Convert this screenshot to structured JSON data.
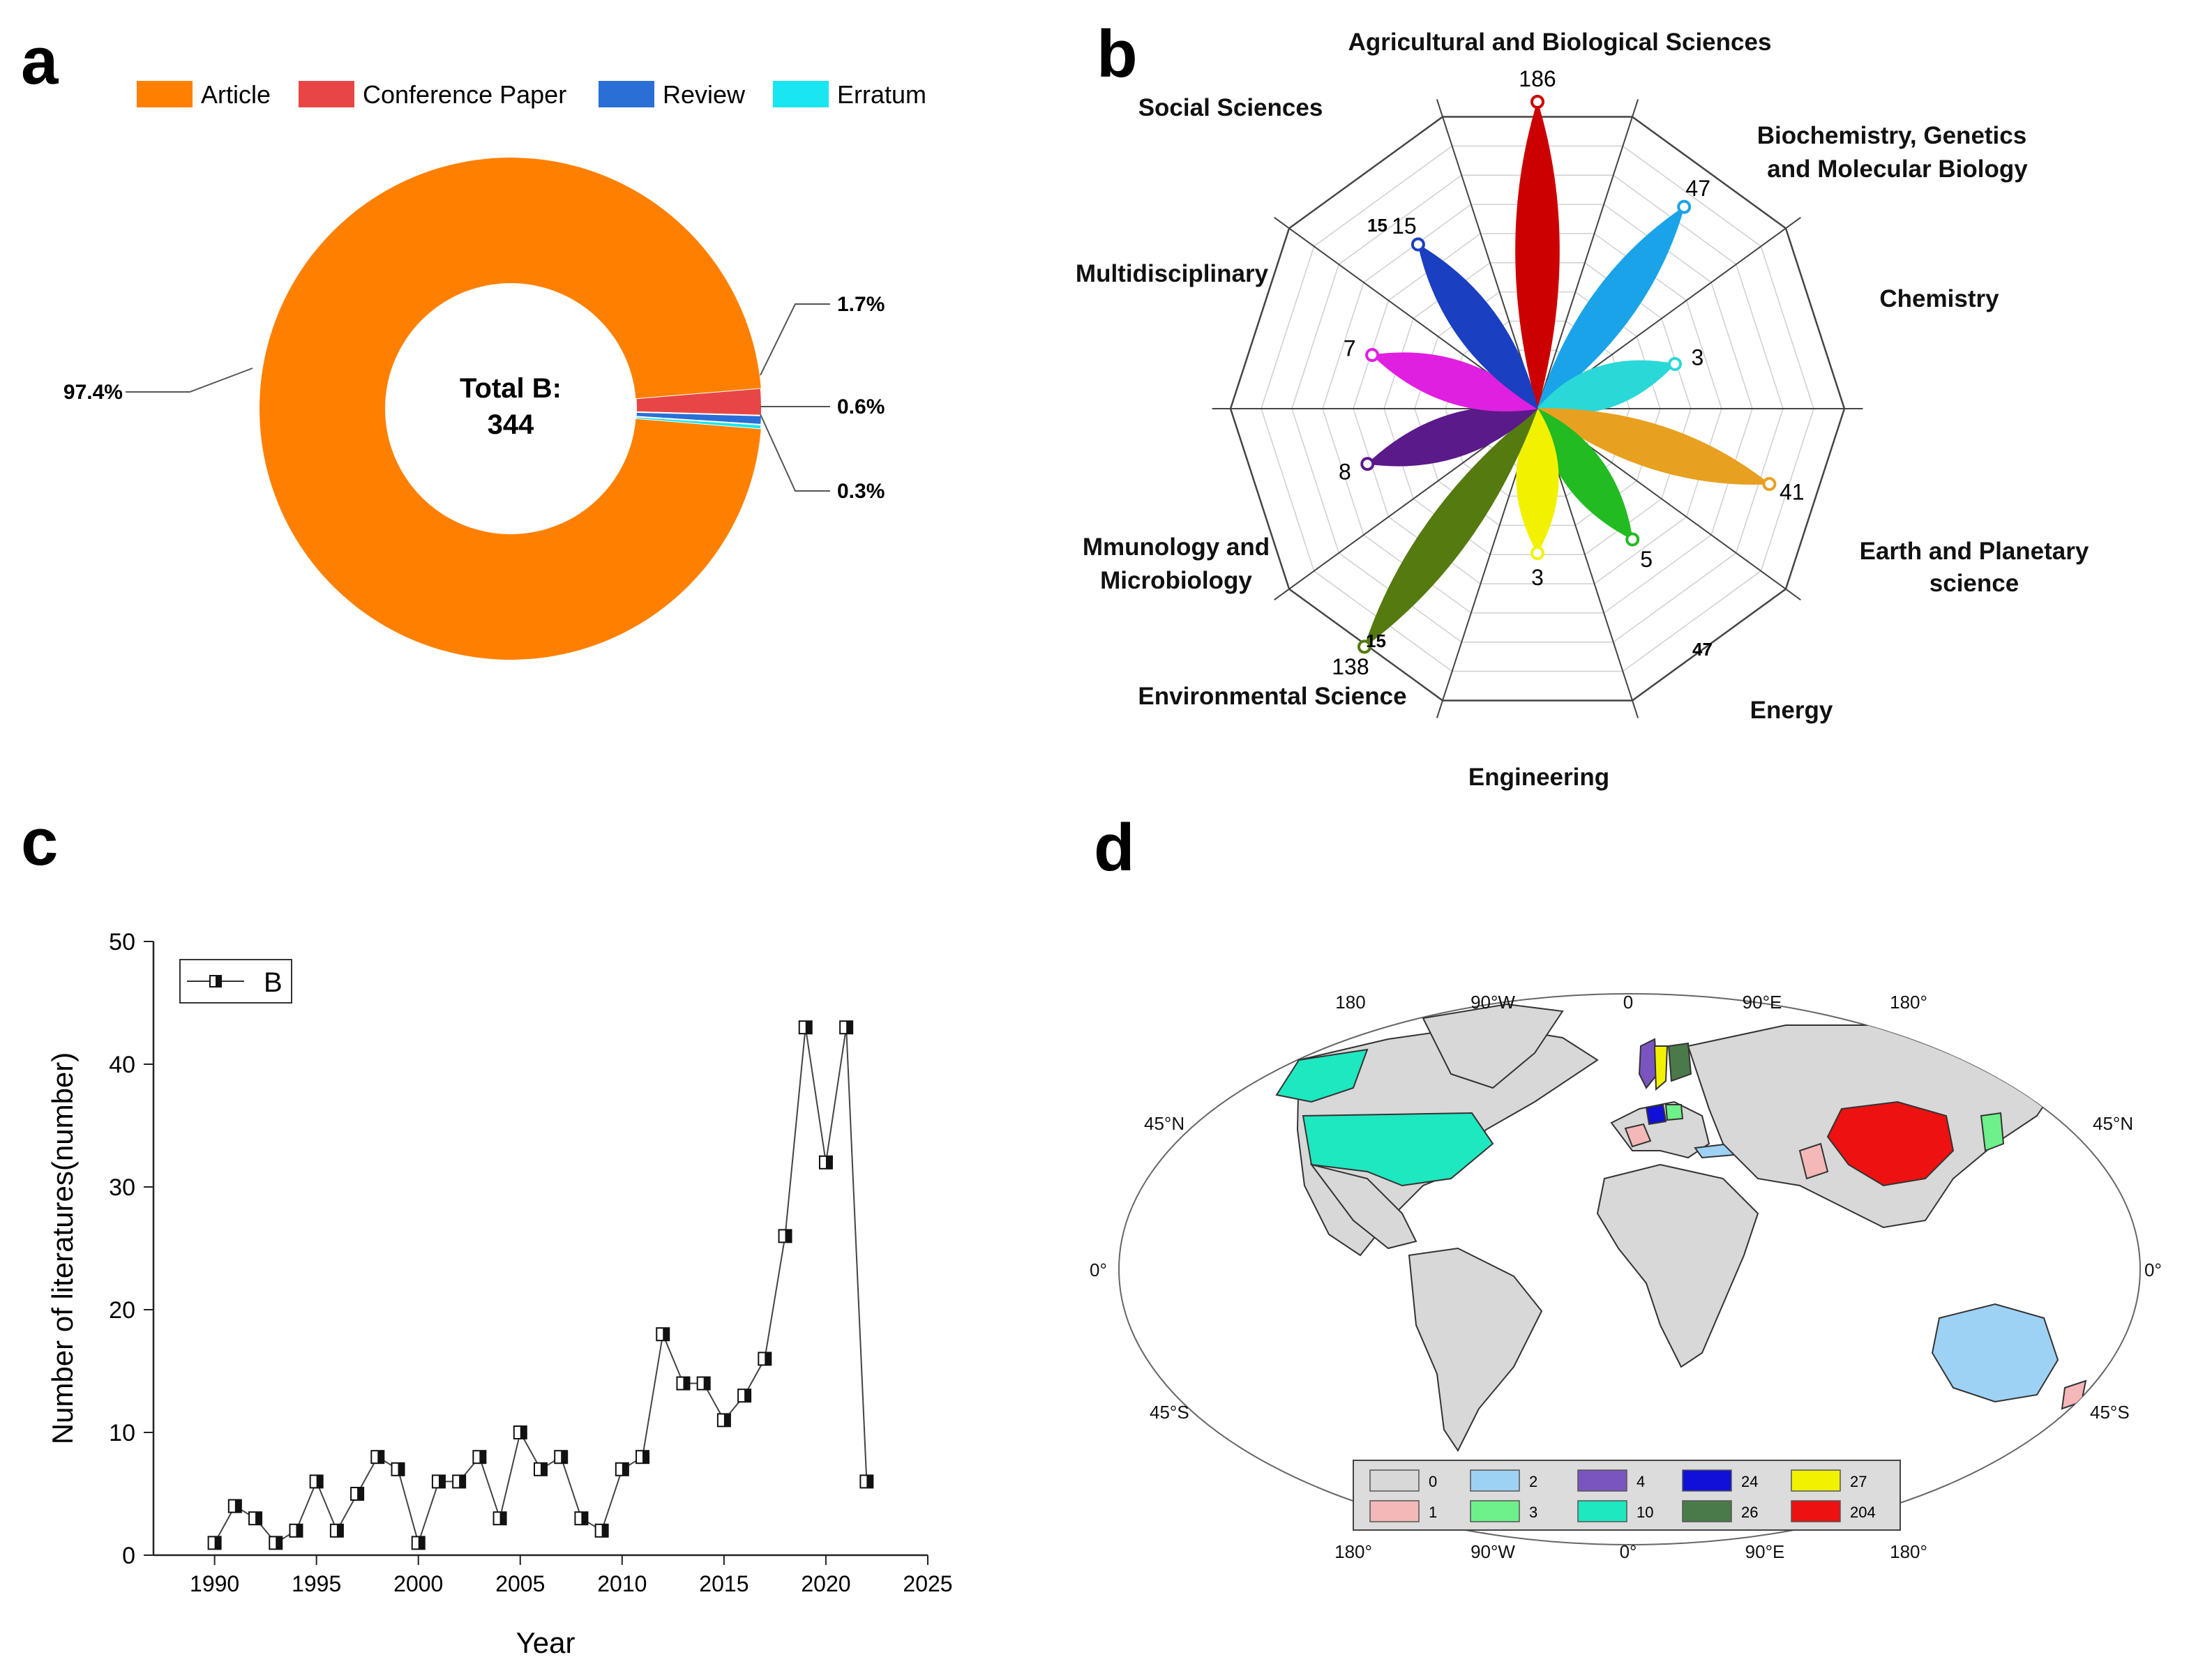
{
  "panels": {
    "a": {
      "letter": "a",
      "chart_data": {
        "type": "pie",
        "variant": "donut",
        "center_label": [
          "Total B:",
          "344"
        ],
        "legend": [
          "Article",
          "Conference Paper",
          "Review",
          "Erratum"
        ],
        "colors": [
          "#ff8000",
          "#e84646",
          "#2a6fd6",
          "#19e6f0"
        ],
        "values": [
          335,
          6,
          2,
          1
        ],
        "percent_labels": [
          "97.4%",
          "1.7%",
          "0.6%",
          "0.3%"
        ]
      }
    },
    "b": {
      "letter": "b",
      "chart_data": {
        "type": "radar",
        "style": "petal",
        "categories": [
          "Agricultural and Biological Sciences",
          "Biochemistry, Genetics and Molecular Biology",
          "Chemistry",
          "Earth and Planetary science",
          "Energy",
          "Engineering",
          "Environmental Science",
          "Mmunology and Microbiology",
          "Multidisciplinary",
          "Social Sciences"
        ],
        "values": [
          186,
          47,
          3,
          41,
          5,
          3,
          138,
          8,
          7,
          15
        ],
        "value_labels": [
          "186",
          "47",
          "3",
          "41",
          "5",
          "3",
          "138",
          "8",
          "7",
          "15"
        ],
        "colors": [
          "#cc0000",
          "#1aa3e8",
          "#2ad8d8",
          "#e8a020",
          "#22bb22",
          "#f2f200",
          "#557a10",
          "#5a1a8a",
          "#e020e0",
          "#1a3fc0"
        ],
        "axis_markers": [
          "15",
          "47",
          "15"
        ]
      }
    },
    "c": {
      "letter": "c",
      "chart_data": {
        "type": "line",
        "series": [
          {
            "name": "B",
            "x": [
              1990,
              1991,
              1992,
              1993,
              1994,
              1995,
              1996,
              1997,
              1998,
              1999,
              2000,
              2001,
              2002,
              2003,
              2004,
              2005,
              2006,
              2007,
              2008,
              2009,
              2010,
              2011,
              2012,
              2013,
              2014,
              2015,
              2016,
              2017,
              2018,
              2019,
              2020,
              2021,
              2022
            ],
            "values": [
              1,
              4,
              3,
              1,
              2,
              6,
              2,
              5,
              8,
              7,
              1,
              6,
              6,
              8,
              3,
              10,
              7,
              8,
              3,
              2,
              7,
              8,
              18,
              14,
              14,
              11,
              13,
              16,
              26,
              43,
              32,
              43,
              6
            ]
          }
        ],
        "xlabel": "Year",
        "ylabel": "Number of literatures(number)",
        "xlim": [
          1987,
          2025
        ],
        "ylim": [
          0,
          50
        ],
        "xticks": [
          "1990",
          "1995",
          "2000",
          "2005",
          "2010",
          "2015",
          "2020",
          "2025"
        ],
        "yticks": [
          "0",
          "10",
          "20",
          "30",
          "40",
          "50"
        ],
        "legend": "top-left"
      }
    },
    "d": {
      "letter": "d",
      "chart_data": {
        "type": "choropleth-map",
        "top_labels": [
          "180",
          "90°W",
          "0",
          "90°E",
          "180°"
        ],
        "bottom_labels": [
          "180°",
          "90°W",
          "0°",
          "90°E",
          "180°"
        ],
        "left_labels": [
          "45°N",
          "0°",
          "45°S"
        ],
        "right_labels": [
          "45°N",
          "0°",
          "45°S"
        ],
        "legend": [
          {
            "label": "0",
            "color": "#d8d8d8"
          },
          {
            "label": "2",
            "color": "#9ed2f4"
          },
          {
            "label": "4",
            "color": "#7a55c0"
          },
          {
            "label": "24",
            "color": "#1010d8"
          },
          {
            "label": "27",
            "color": "#f2f200"
          },
          {
            "label": "1",
            "color": "#f4b8b8"
          },
          {
            "label": "3",
            "color": "#6ef08a"
          },
          {
            "label": "10",
            "color": "#1ee8c0"
          },
          {
            "label": "26",
            "color": "#4a7a4a"
          },
          {
            "label": "204",
            "color": "#ee1111"
          }
        ],
        "region_values": [
          {
            "region": "China",
            "value": 204
          },
          {
            "region": "USA",
            "value": 10
          },
          {
            "region": "Alaska",
            "value": 10
          },
          {
            "region": "Australia",
            "value": 2
          },
          {
            "region": "Turkey",
            "value": 2
          },
          {
            "region": "Sweden",
            "value": 27
          },
          {
            "region": "Finland",
            "value": 26
          },
          {
            "region": "Norway",
            "value": 4
          },
          {
            "region": "Germany",
            "value": 24
          },
          {
            "region": "Poland",
            "value": 3
          },
          {
            "region": "Japan",
            "value": 3
          },
          {
            "region": "France",
            "value": 1
          },
          {
            "region": "Pakistan",
            "value": 1
          },
          {
            "region": "New Zealand",
            "value": 1
          }
        ]
      }
    }
  }
}
